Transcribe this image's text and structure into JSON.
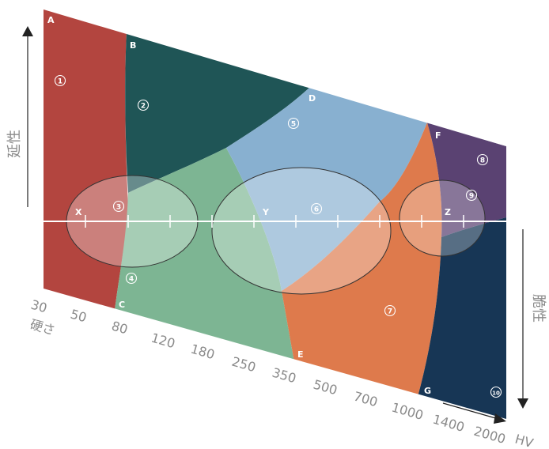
{
  "labels": {
    "ductility": "延性",
    "brittleness": "脆性",
    "hardness": "硬さ",
    "unit": "HV"
  },
  "points": {
    "A": "A",
    "B": "B",
    "C": "C",
    "D": "D",
    "E": "E",
    "F": "F",
    "G": "G",
    "X": "X",
    "Y": "Y",
    "Z": "Z"
  },
  "regions": [
    "1",
    "2",
    "3",
    "4",
    "5",
    "6",
    "7",
    "8",
    "9",
    "10"
  ],
  "hardness_ticks": [
    "30",
    "50",
    "80",
    "120",
    "180",
    "250",
    "350",
    "500",
    "700",
    "1000",
    "1400",
    "2000"
  ],
  "colors": {
    "region1": "#b3453f",
    "region2": "#1f5556",
    "region4": "#7db593",
    "region5": "#88b0d0",
    "region7": "#de7a4c",
    "region8": "#5a4272",
    "region10": "#173655",
    "axis": "#222222",
    "text": "#8a8a8a"
  }
}
